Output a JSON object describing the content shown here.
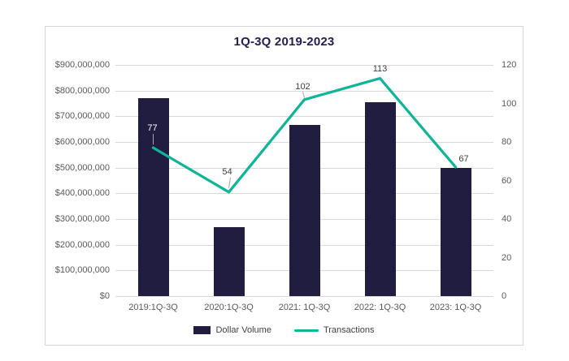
{
  "chart_data": {
    "type": "combo",
    "title": "1Q-3Q 2019-2023",
    "categories": [
      "2019:1Q-3Q",
      "2020:1Q-3Q",
      "2021: 1Q-3Q",
      "2022: 1Q-3Q",
      "2023: 1Q-3Q"
    ],
    "series": [
      {
        "name": "Dollar Volume",
        "type": "bar",
        "axis": "left",
        "color": "#201D40",
        "values": [
          770000000,
          270000000,
          665000000,
          755000000,
          500000000
        ]
      },
      {
        "name": "Transactions",
        "type": "line",
        "axis": "right",
        "color": "#10B496",
        "values": [
          77,
          54,
          102,
          113,
          67
        ],
        "data_labels": [
          {
            "text": "77",
            "color": "#FFFFFF"
          },
          {
            "text": "54",
            "color": "#404040"
          },
          {
            "text": "102",
            "color": "#404040"
          },
          {
            "text": "113",
            "color": "#404040"
          },
          {
            "text": "67",
            "color": "#404040"
          }
        ]
      }
    ],
    "left_axis": {
      "min": 0,
      "max": 900000000,
      "tick_labels": [
        "$900,000,000",
        "$800,000,000",
        "$700,000,000",
        "$600,000,000",
        "$500,000,000",
        "$400,000,000",
        "$300,000,000",
        "$200,000,000",
        "$100,000,000",
        "$0"
      ]
    },
    "right_axis": {
      "min": 0,
      "max": 120,
      "tick_labels": [
        "120",
        "100",
        "80",
        "60",
        "40",
        "20",
        "0"
      ]
    },
    "grid": true,
    "legend_position": "bottom"
  },
  "colors": {
    "gridline": "#D9D9D9",
    "axis_text": "#595959",
    "panel_border": "#D6D4D4",
    "title": "#242051",
    "leader_line": "#A6A6A6"
  }
}
